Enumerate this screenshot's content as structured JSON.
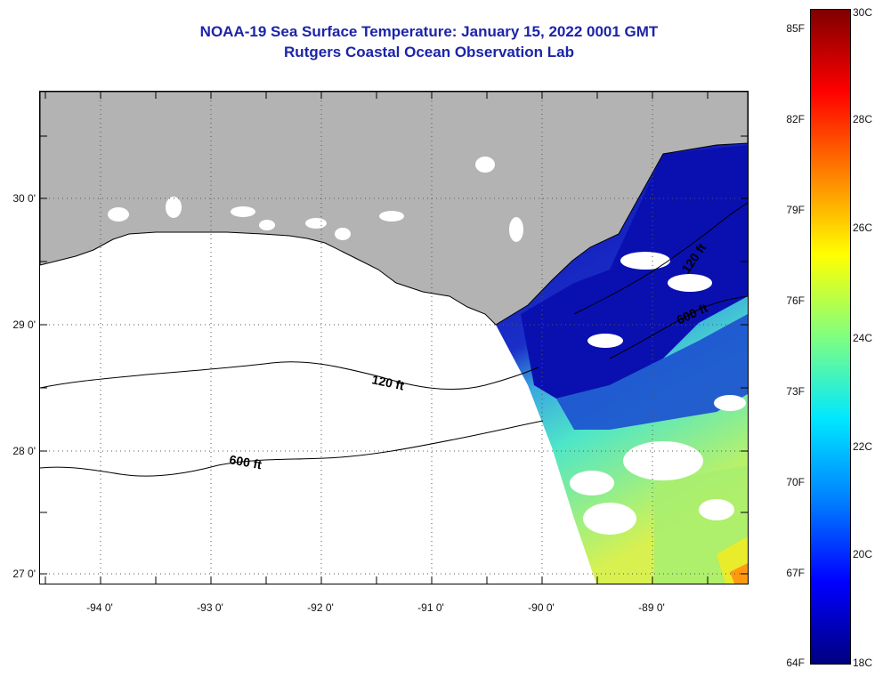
{
  "title": {
    "line1": "NOAA-19 Sea Surface Temperature:  January 15, 2022 0001 GMT",
    "line2": "Rutgers Coastal Ocean Observation Lab"
  },
  "map": {
    "land_color": "#b3b3b3",
    "no_data_color": "#ffffff",
    "x_labels": [
      "-94 0'",
      "-93 0'",
      "-92 0'",
      "-91 0'",
      "-90 0'",
      "-89 0'"
    ],
    "y_labels": [
      "30 0'",
      "29 0'",
      "28 0'",
      "27 0'"
    ],
    "contour_labels": [
      "120 ft",
      "600 ft",
      "120 ft",
      "600 ft"
    ]
  },
  "colorbar": {
    "fahrenheit_labels": [
      "85F",
      "82F",
      "79F",
      "76F",
      "73F",
      "70F",
      "67F",
      "64F"
    ],
    "celsius_labels": [
      "30C",
      "28C",
      "26C",
      "24C",
      "22C",
      "20C",
      "18C"
    ],
    "gradient_colors": [
      "#00007f",
      "#0000ff",
      "#0080ff",
      "#00e8ff",
      "#80ff80",
      "#ffff00",
      "#ff8000",
      "#ff0000",
      "#7f0000"
    ]
  }
}
